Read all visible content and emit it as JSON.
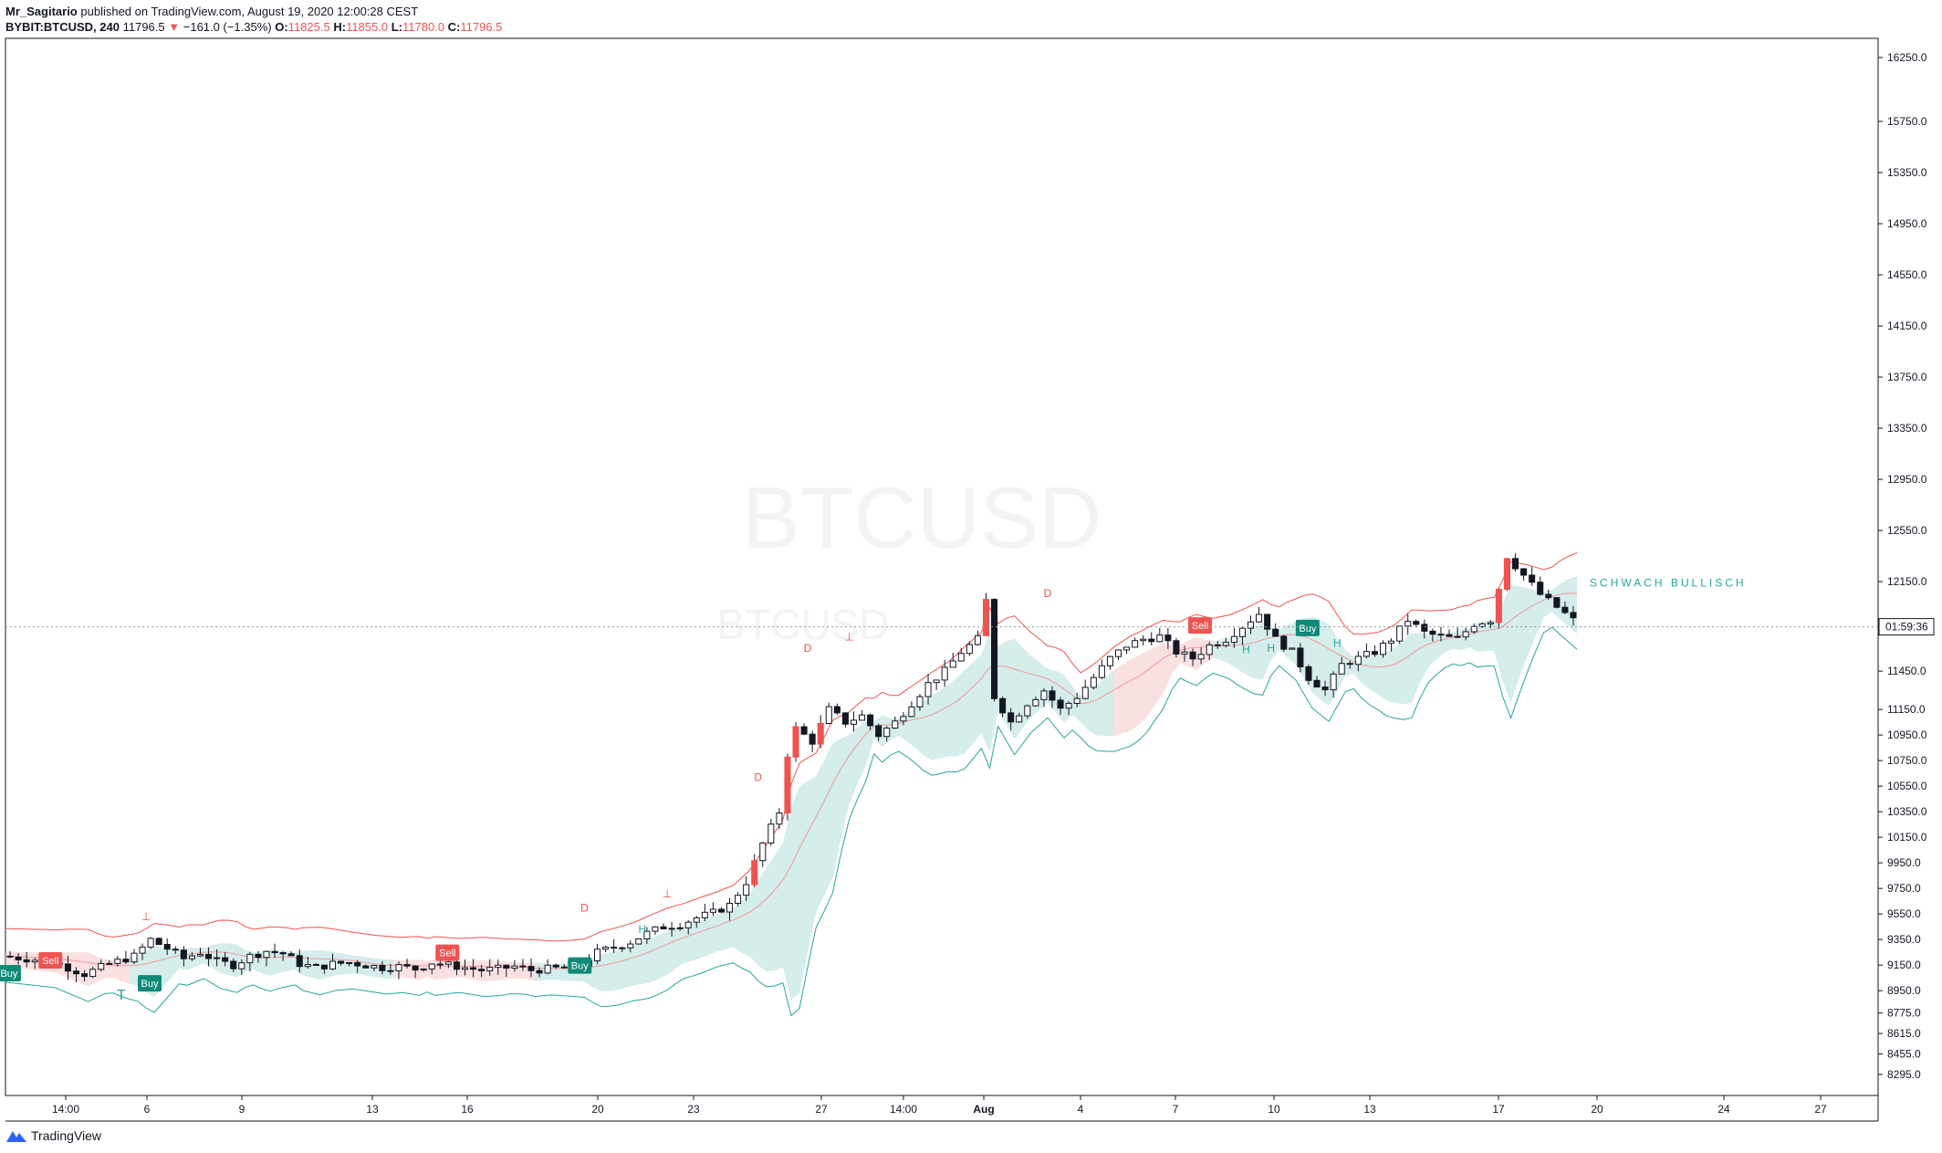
{
  "header": {
    "author": "Mr_Sagitario",
    "published": "published on TradingView.com, August 19, 2020 12:00:28 CEST",
    "symbol": "BYBIT:BTCUSD, 240",
    "last": "11796.5",
    "change_arrow": "▼",
    "change": "−161.0 (−1.35%)",
    "o_label": "O:",
    "o_value": "11825.5",
    "h_label": "H:",
    "h_value": "11855.0",
    "l_label": "L:",
    "l_value": "11780.0",
    "c_label": "C:",
    "c_value": "11796.5"
  },
  "footer": {
    "logo_text": "TradingView"
  },
  "colors": {
    "up": "#ffffff",
    "down": "#131722",
    "bear_signal": "#ef5350",
    "teal": "#26a69a",
    "teal_fill": "#b2dfdb",
    "red_fill": "#f8c7cb",
    "grid": "#e0e3eb"
  },
  "chart_data": {
    "type": "candlestick",
    "watermark": [
      "BTCUSD",
      "BTCUSD"
    ],
    "ylim": [
      8130,
      16400
    ],
    "price_ticks": [
      "16250.0",
      "15750.0",
      "15350.0",
      "14950.0",
      "14550.0",
      "14150.0",
      "13750.0",
      "13350.0",
      "12950.0",
      "12550.0",
      "12150.0",
      "11450.0",
      "11150.0",
      "10950.0",
      "10750.0",
      "10550.0",
      "10350.0",
      "10150.0",
      "9950.0",
      "9750.0",
      "9550.0",
      "9350.0",
      "9150.0",
      "8950.0",
      "8775.0",
      "8615.0",
      "8455.0",
      "8295.0"
    ],
    "current_time_label": "01:59:36",
    "x_ticks": [
      "14:00",
      "6",
      "9",
      "13",
      "16",
      "20",
      "23",
      "27",
      "14:00",
      "Aug",
      "4",
      "7",
      "10",
      "13",
      "17",
      "20",
      "24",
      "27"
    ],
    "annotation_text": "SCHWACH BULLISCH",
    "signals": [
      {
        "text": "Sell",
        "kind": "sell"
      },
      {
        "text": "Buy",
        "kind": "buy"
      },
      {
        "text": "Buy",
        "kind": "buy"
      },
      {
        "text": "Sell",
        "kind": "sell"
      },
      {
        "text": "Buy",
        "kind": "buy"
      },
      {
        "text": "Sell",
        "kind": "sell"
      },
      {
        "text": "Buy",
        "kind": "buy"
      }
    ],
    "markers": [
      {
        "text": "T",
        "kind": "teal"
      },
      {
        "text": "⊥",
        "kind": "red"
      },
      {
        "text": "D",
        "kind": "red"
      },
      {
        "text": "⊥",
        "kind": "red"
      },
      {
        "text": "H",
        "kind": "teal"
      },
      {
        "text": "D",
        "kind": "red"
      },
      {
        "text": "D",
        "kind": "red"
      },
      {
        "text": "⊥",
        "kind": "red"
      },
      {
        "text": "D",
        "kind": "red"
      },
      {
        "text": "H",
        "kind": "teal"
      },
      {
        "text": "H",
        "kind": "teal"
      },
      {
        "text": "H",
        "kind": "teal"
      }
    ],
    "close_path": [
      [
        0,
        9220
      ],
      [
        6,
        9180
      ],
      [
        10,
        9080
      ],
      [
        13,
        9160
      ],
      [
        16,
        9220
      ],
      [
        18,
        9350
      ],
      [
        20,
        9280
      ],
      [
        22,
        9200
      ],
      [
        24,
        9250
      ],
      [
        26,
        9180
      ],
      [
        28,
        9150
      ],
      [
        30,
        9220
      ],
      [
        32,
        9260
      ],
      [
        34,
        9240
      ],
      [
        36,
        9160
      ],
      [
        38,
        9130
      ],
      [
        40,
        9160
      ],
      [
        42,
        9170
      ],
      [
        44,
        9150
      ],
      [
        46,
        9130
      ],
      [
        48,
        9140
      ],
      [
        50,
        9120
      ],
      [
        52,
        9170
      ],
      [
        54,
        9150
      ],
      [
        56,
        9130
      ],
      [
        58,
        9110
      ],
      [
        60,
        9120
      ],
      [
        62,
        9140
      ],
      [
        64,
        9110
      ],
      [
        66,
        9120
      ],
      [
        68,
        9130
      ],
      [
        70,
        9150
      ],
      [
        72,
        9250
      ],
      [
        74,
        9290
      ],
      [
        76,
        9330
      ],
      [
        78,
        9400
      ],
      [
        80,
        9450
      ],
      [
        82,
        9470
      ],
      [
        84,
        9520
      ],
      [
        86,
        9560
      ],
      [
        88,
        9620
      ],
      [
        90,
        9800
      ],
      [
        92,
        10100
      ],
      [
        94,
        10350
      ],
      [
        95,
        10800
      ],
      [
        96,
        11000
      ],
      [
        98,
        10900
      ],
      [
        100,
        11150
      ],
      [
        102,
        11050
      ],
      [
        104,
        11100
      ],
      [
        106,
        10950
      ],
      [
        108,
        11050
      ],
      [
        110,
        11200
      ],
      [
        112,
        11350
      ],
      [
        114,
        11450
      ],
      [
        116,
        11600
      ],
      [
        118,
        11700
      ],
      [
        119,
        12000
      ],
      [
        120,
        11250
      ],
      [
        122,
        11050
      ],
      [
        124,
        11200
      ],
      [
        126,
        11300
      ],
      [
        128,
        11150
      ],
      [
        130,
        11250
      ],
      [
        132,
        11400
      ],
      [
        134,
        11550
      ],
      [
        136,
        11650
      ],
      [
        138,
        11700
      ],
      [
        140,
        11720
      ],
      [
        142,
        11600
      ],
      [
        144,
        11550
      ],
      [
        146,
        11650
      ],
      [
        148,
        11700
      ],
      [
        150,
        11800
      ],
      [
        152,
        11900
      ],
      [
        154,
        11700
      ],
      [
        156,
        11600
      ],
      [
        158,
        11400
      ],
      [
        160,
        11300
      ],
      [
        162,
        11500
      ],
      [
        164,
        11550
      ],
      [
        166,
        11600
      ],
      [
        168,
        11700
      ],
      [
        170,
        11850
      ],
      [
        172,
        11750
      ],
      [
        174,
        11720
      ],
      [
        176,
        11700
      ],
      [
        178,
        11820
      ],
      [
        180,
        11850
      ],
      [
        182,
        12350
      ],
      [
        184,
        12200
      ],
      [
        186,
        12050
      ],
      [
        188,
        11950
      ],
      [
        189,
        11900
      ],
      [
        190,
        11850
      ]
    ],
    "candle_count": 190
  }
}
